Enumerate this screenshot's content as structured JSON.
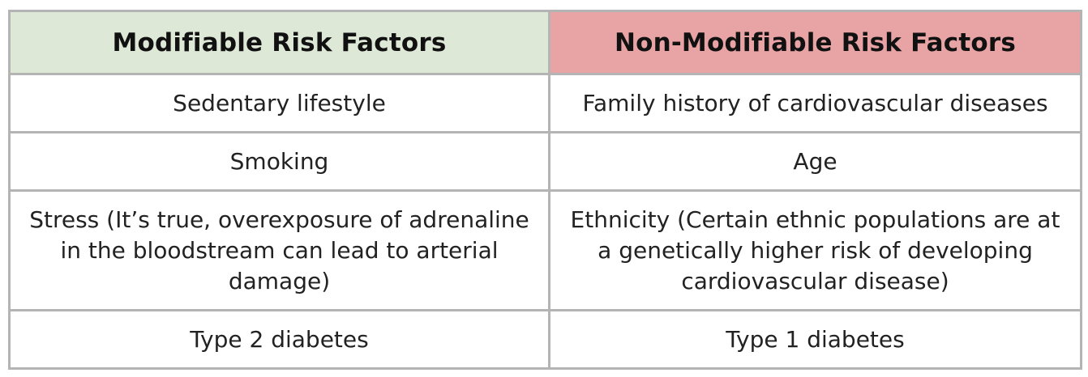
{
  "table": {
    "headers": {
      "modifiable": "Modifiable Risk Factors",
      "non_modifiable": "Non-Modifiable Risk Factors"
    },
    "header_colors": {
      "modifiable": "#dde8d6",
      "non_modifiable": "#e8a3a5"
    },
    "rows": [
      {
        "modifiable": "Sedentary lifestyle",
        "non_modifiable": "Family history of cardiovascular diseases"
      },
      {
        "modifiable": "Smoking",
        "non_modifiable": "Age"
      },
      {
        "modifiable": "Stress (It’s true, overexposure of adrenaline in the bloodstream can lead to arterial damage)",
        "non_modifiable": "Ethnicity (Certain ethnic populations are at a genetically higher risk of developing cardiovascular disease)"
      },
      {
        "modifiable": "Type 2 diabetes",
        "non_modifiable": "Type 1 diabetes"
      }
    ]
  }
}
